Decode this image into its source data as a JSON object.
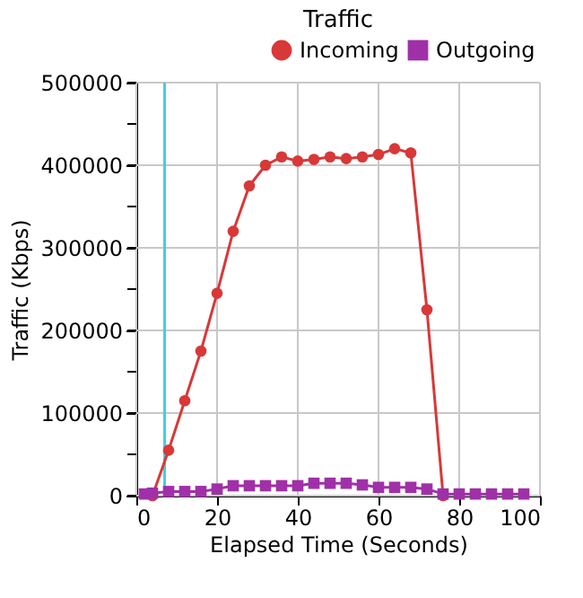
{
  "chart_data": {
    "type": "line",
    "title": "Traffic",
    "xlabel": "Elapsed Time (Seconds)",
    "ylabel": "Traffic (Kbps)",
    "xlim": [
      0,
      100
    ],
    "xticks": [
      0,
      20,
      40,
      60,
      80,
      100
    ],
    "ylim": [
      0,
      500000
    ],
    "yticks": [
      0,
      {
        "value": 50000,
        "label": null
      },
      100000,
      {
        "value": 150000,
        "label": null
      },
      200000,
      {
        "value": 250000,
        "label": null
      },
      300000,
      {
        "value": 350000,
        "label": null
      },
      400000,
      {
        "value": 450000,
        "label": null
      },
      500000
    ],
    "grid": true,
    "legend": "top right",
    "line_style": "solid",
    "ref_lines": [
      {
        "axis": "x",
        "value": 7,
        "color": "#40d0e0"
      }
    ],
    "series": [
      {
        "name": "Incoming",
        "color": "#d83838",
        "marker": "circle",
        "x": [
          4,
          8,
          12,
          16,
          20,
          24,
          28,
          32,
          36,
          40,
          44,
          48,
          52,
          56,
          60,
          64,
          68,
          72,
          76
        ],
        "values": [
          0,
          55000,
          115000,
          175000,
          245000,
          320000,
          375000,
          400000,
          410000,
          405000,
          407000,
          410000,
          408000,
          410000,
          413000,
          420000,
          415000,
          225000,
          0
        ]
      },
      {
        "name": "Outgoing",
        "color": "#a030a8",
        "marker": "square",
        "x": [
          2,
          4,
          8,
          12,
          16,
          20,
          24,
          28,
          32,
          36,
          40,
          44,
          48,
          52,
          56,
          60,
          64,
          68,
          72,
          76,
          80,
          84,
          88,
          92,
          96
        ],
        "values": [
          2000,
          3000,
          5000,
          5000,
          5000,
          8000,
          12000,
          12000,
          12000,
          12000,
          12000,
          15000,
          15000,
          15000,
          13000,
          10000,
          10000,
          10000,
          8000,
          2000,
          2000,
          2000,
          2000,
          2000,
          2000
        ]
      }
    ]
  }
}
